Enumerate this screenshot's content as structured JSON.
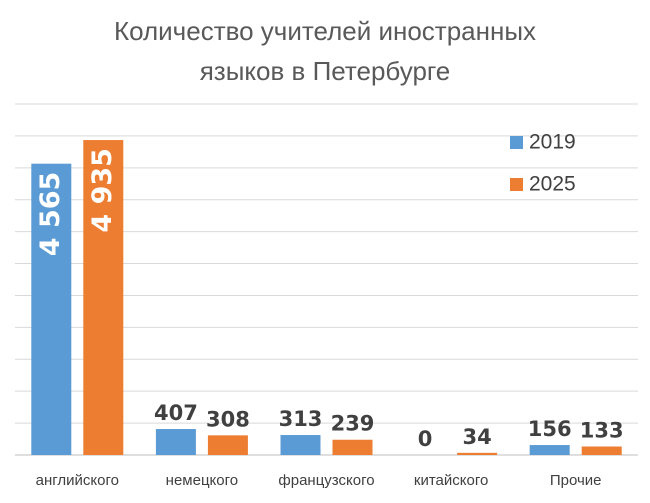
{
  "chart_data": {
    "type": "bar",
    "title_lines": [
      "Количество учителей иностранных",
      "языков в Петербурге"
    ],
    "categories": [
      "английского",
      "немецкого",
      "французского",
      "китайского",
      "Прочие"
    ],
    "series": [
      {
        "name": "2019",
        "values": [
          4565,
          407,
          313,
          0,
          156
        ],
        "labels": [
          "4 565",
          "407",
          "313",
          "0",
          "156"
        ]
      },
      {
        "name": "2025",
        "values": [
          4935,
          308,
          239,
          34,
          133
        ],
        "labels": [
          "4 935",
          "308",
          "239",
          "34",
          "133"
        ]
      }
    ],
    "ylim": [
      0,
      5500
    ],
    "ytick_step": 500,
    "ytick_labels_visible": false,
    "grid": true,
    "legend_position": "top-right",
    "xlabel": "",
    "ylabel": ""
  },
  "colors": {
    "series_2019": "#5b9bd5",
    "series_2025": "#ed7d31"
  }
}
